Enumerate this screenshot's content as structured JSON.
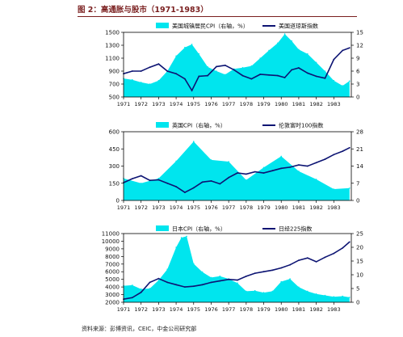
{
  "figure": {
    "title": "图 2：高通胀与股市（1971-1983）",
    "source": "资料来源：彭博资讯，CEIC，中金公司研究部"
  },
  "colors": {
    "area": "#00e5ee",
    "line": "#0d1473"
  },
  "chart_data": [
    {
      "type": "line",
      "legend": {
        "area_label": "美国城镇居民CPI（右轴，%）",
        "line_label": "美国道琼斯指数",
        "placement": "top"
      },
      "x_ticks": [
        "1971",
        "1972",
        "1973",
        "1974",
        "1975",
        "1976",
        "1977",
        "1978",
        "1979",
        "1980",
        "1981",
        "1982",
        "1983"
      ],
      "left_axis": {
        "ticks": [
          "500",
          "700",
          "900",
          "1100",
          "1300",
          "1500"
        ],
        "range": [
          500,
          1500
        ]
      },
      "right_axis": {
        "ticks": [
          "0",
          "3",
          "6",
          "9",
          "12",
          "15"
        ],
        "range": [
          0,
          15
        ]
      },
      "series": [
        {
          "name": "美国城镇居民CPI（右轴，%）",
          "axis": "right",
          "style": "area",
          "x": [
            1971.0,
            1971.5,
            1972.0,
            1972.5,
            1973.0,
            1973.5,
            1974.0,
            1974.5,
            1974.9,
            1975.3,
            1975.8,
            1976.3,
            1976.8,
            1977.3,
            1977.8,
            1978.3,
            1978.8,
            1979.3,
            1979.8,
            1980.2,
            1980.6,
            1981.0,
            1981.5,
            1982.0,
            1982.5,
            1983.0,
            1983.5,
            1983.9
          ],
          "values": [
            4.3,
            4.0,
            3.4,
            3.0,
            3.8,
            6.0,
            9.5,
            11.5,
            12.2,
            10.0,
            7.0,
            6.0,
            5.2,
            6.5,
            6.8,
            7.2,
            9.0,
            10.8,
            12.5,
            14.6,
            13.0,
            11.0,
            10.0,
            8.0,
            6.0,
            3.8,
            2.6,
            3.7
          ]
        },
        {
          "name": "美国道琼斯指数",
          "axis": "left",
          "style": "line",
          "x": [
            1971.0,
            1971.5,
            1972.0,
            1972.5,
            1973.0,
            1973.5,
            1974.0,
            1974.5,
            1974.9,
            1975.3,
            1975.8,
            1976.3,
            1976.8,
            1977.3,
            1977.8,
            1978.3,
            1978.8,
            1979.3,
            1979.8,
            1980.2,
            1980.6,
            1981.0,
            1981.5,
            1982.0,
            1982.5,
            1983.0,
            1983.5,
            1983.9
          ],
          "values": [
            860,
            900,
            900,
            960,
            1010,
            900,
            860,
            780,
            600,
            820,
            830,
            970,
            990,
            920,
            830,
            780,
            850,
            840,
            830,
            800,
            920,
            950,
            870,
            820,
            790,
            1080,
            1220,
            1260
          ]
        }
      ]
    },
    {
      "type": "line",
      "legend": {
        "area_label": "英国CPI（右轴，%）",
        "line_label": "伦敦富时100指数",
        "placement": "top"
      },
      "x_ticks": [
        "1971",
        "1972",
        "1973",
        "1974",
        "1975",
        "1976",
        "1977",
        "1978",
        "1979",
        "1980",
        "1981",
        "1982",
        "1983"
      ],
      "left_axis": {
        "ticks": [
          "0",
          "150",
          "300",
          "450",
          "600"
        ],
        "range": [
          0,
          600
        ]
      },
      "right_axis": {
        "ticks": [
          "0",
          "7",
          "14",
          "21",
          "28"
        ],
        "range": [
          0,
          28
        ]
      },
      "series": [
        {
          "name": "英国CPI（右轴，%）",
          "axis": "right",
          "style": "area",
          "x": [
            1971.0,
            1972.0,
            1973.0,
            1974.0,
            1975.0,
            1976.0,
            1977.0,
            1978.0,
            1979.0,
            1980.0,
            1981.0,
            1982.0,
            1983.0,
            1983.9
          ],
          "values": [
            9.0,
            7.0,
            9.0,
            16.0,
            24.0,
            16.5,
            15.8,
            8.3,
            13.4,
            18.0,
            11.9,
            8.6,
            4.6,
            5.0
          ]
        },
        {
          "name": "伦敦富时100指数",
          "axis": "left",
          "style": "line",
          "x": [
            1971.0,
            1971.5,
            1972.0,
            1972.5,
            1973.0,
            1973.5,
            1974.0,
            1974.5,
            1975.0,
            1975.5,
            1976.0,
            1976.5,
            1977.0,
            1977.5,
            1978.0,
            1978.5,
            1979.0,
            1979.5,
            1980.0,
            1980.5,
            1981.0,
            1981.5,
            1982.0,
            1982.5,
            1983.0,
            1983.5,
            1983.9
          ],
          "values": [
            155,
            190,
            215,
            175,
            180,
            150,
            120,
            70,
            110,
            160,
            170,
            145,
            200,
            240,
            230,
            250,
            240,
            260,
            280,
            290,
            310,
            300,
            330,
            360,
            400,
            430,
            460
          ]
        }
      ]
    },
    {
      "type": "line",
      "legend": {
        "area_label": "日本CPI（右轴，%）",
        "line_label": "日经225指数",
        "placement": "top"
      },
      "x_ticks": [
        "1971",
        "1972",
        "1973",
        "1974",
        "1975",
        "1976",
        "1977",
        "1978",
        "1979",
        "1980",
        "1981",
        "1982",
        "1983"
      ],
      "left_axis": {
        "ticks": [
          "2000",
          "3000",
          "4000",
          "5000",
          "6000",
          "7000",
          "8000",
          "9000",
          "10000",
          "11000"
        ],
        "range": [
          2000,
          11000
        ]
      },
      "right_axis": {
        "ticks": [
          "0",
          "5",
          "10",
          "15",
          "20",
          "25"
        ],
        "range": [
          0,
          25
        ]
      },
      "series": [
        {
          "name": "日本CPI（右轴，%）",
          "axis": "right",
          "style": "area",
          "x": [
            1971.0,
            1971.5,
            1972.0,
            1972.5,
            1973.0,
            1973.5,
            1974.0,
            1974.3,
            1974.6,
            1975.0,
            1975.5,
            1976.0,
            1976.5,
            1977.0,
            1977.5,
            1978.0,
            1978.5,
            1979.0,
            1979.5,
            1980.0,
            1980.5,
            1981.0,
            1981.5,
            1982.0,
            1982.5,
            1983.0,
            1983.5,
            1983.9
          ],
          "values": [
            6.0,
            6.2,
            4.8,
            5.0,
            8.0,
            12.0,
            20.0,
            23.5,
            24.0,
            14.0,
            11.0,
            9.0,
            9.5,
            8.5,
            7.0,
            4.0,
            4.2,
            3.5,
            4.0,
            7.5,
            8.5,
            5.5,
            4.0,
            3.0,
            2.5,
            2.0,
            2.2,
            1.8
          ]
        },
        {
          "name": "日经225指数",
          "axis": "left",
          "style": "line",
          "x": [
            1971.0,
            1971.5,
            1972.0,
            1972.5,
            1973.0,
            1973.5,
            1974.0,
            1974.5,
            1975.0,
            1975.5,
            1976.0,
            1976.5,
            1977.0,
            1977.5,
            1978.0,
            1978.5,
            1979.0,
            1979.5,
            1980.0,
            1980.5,
            1981.0,
            1981.5,
            1982.0,
            1982.5,
            1983.0,
            1983.5,
            1983.9
          ],
          "values": [
            2400,
            2600,
            3300,
            4600,
            5100,
            4600,
            4300,
            4000,
            4100,
            4300,
            4600,
            4800,
            5000,
            4900,
            5400,
            5800,
            6000,
            6200,
            6500,
            6900,
            7500,
            7800,
            7300,
            7900,
            8400,
            9100,
            9900
          ]
        }
      ]
    }
  ]
}
